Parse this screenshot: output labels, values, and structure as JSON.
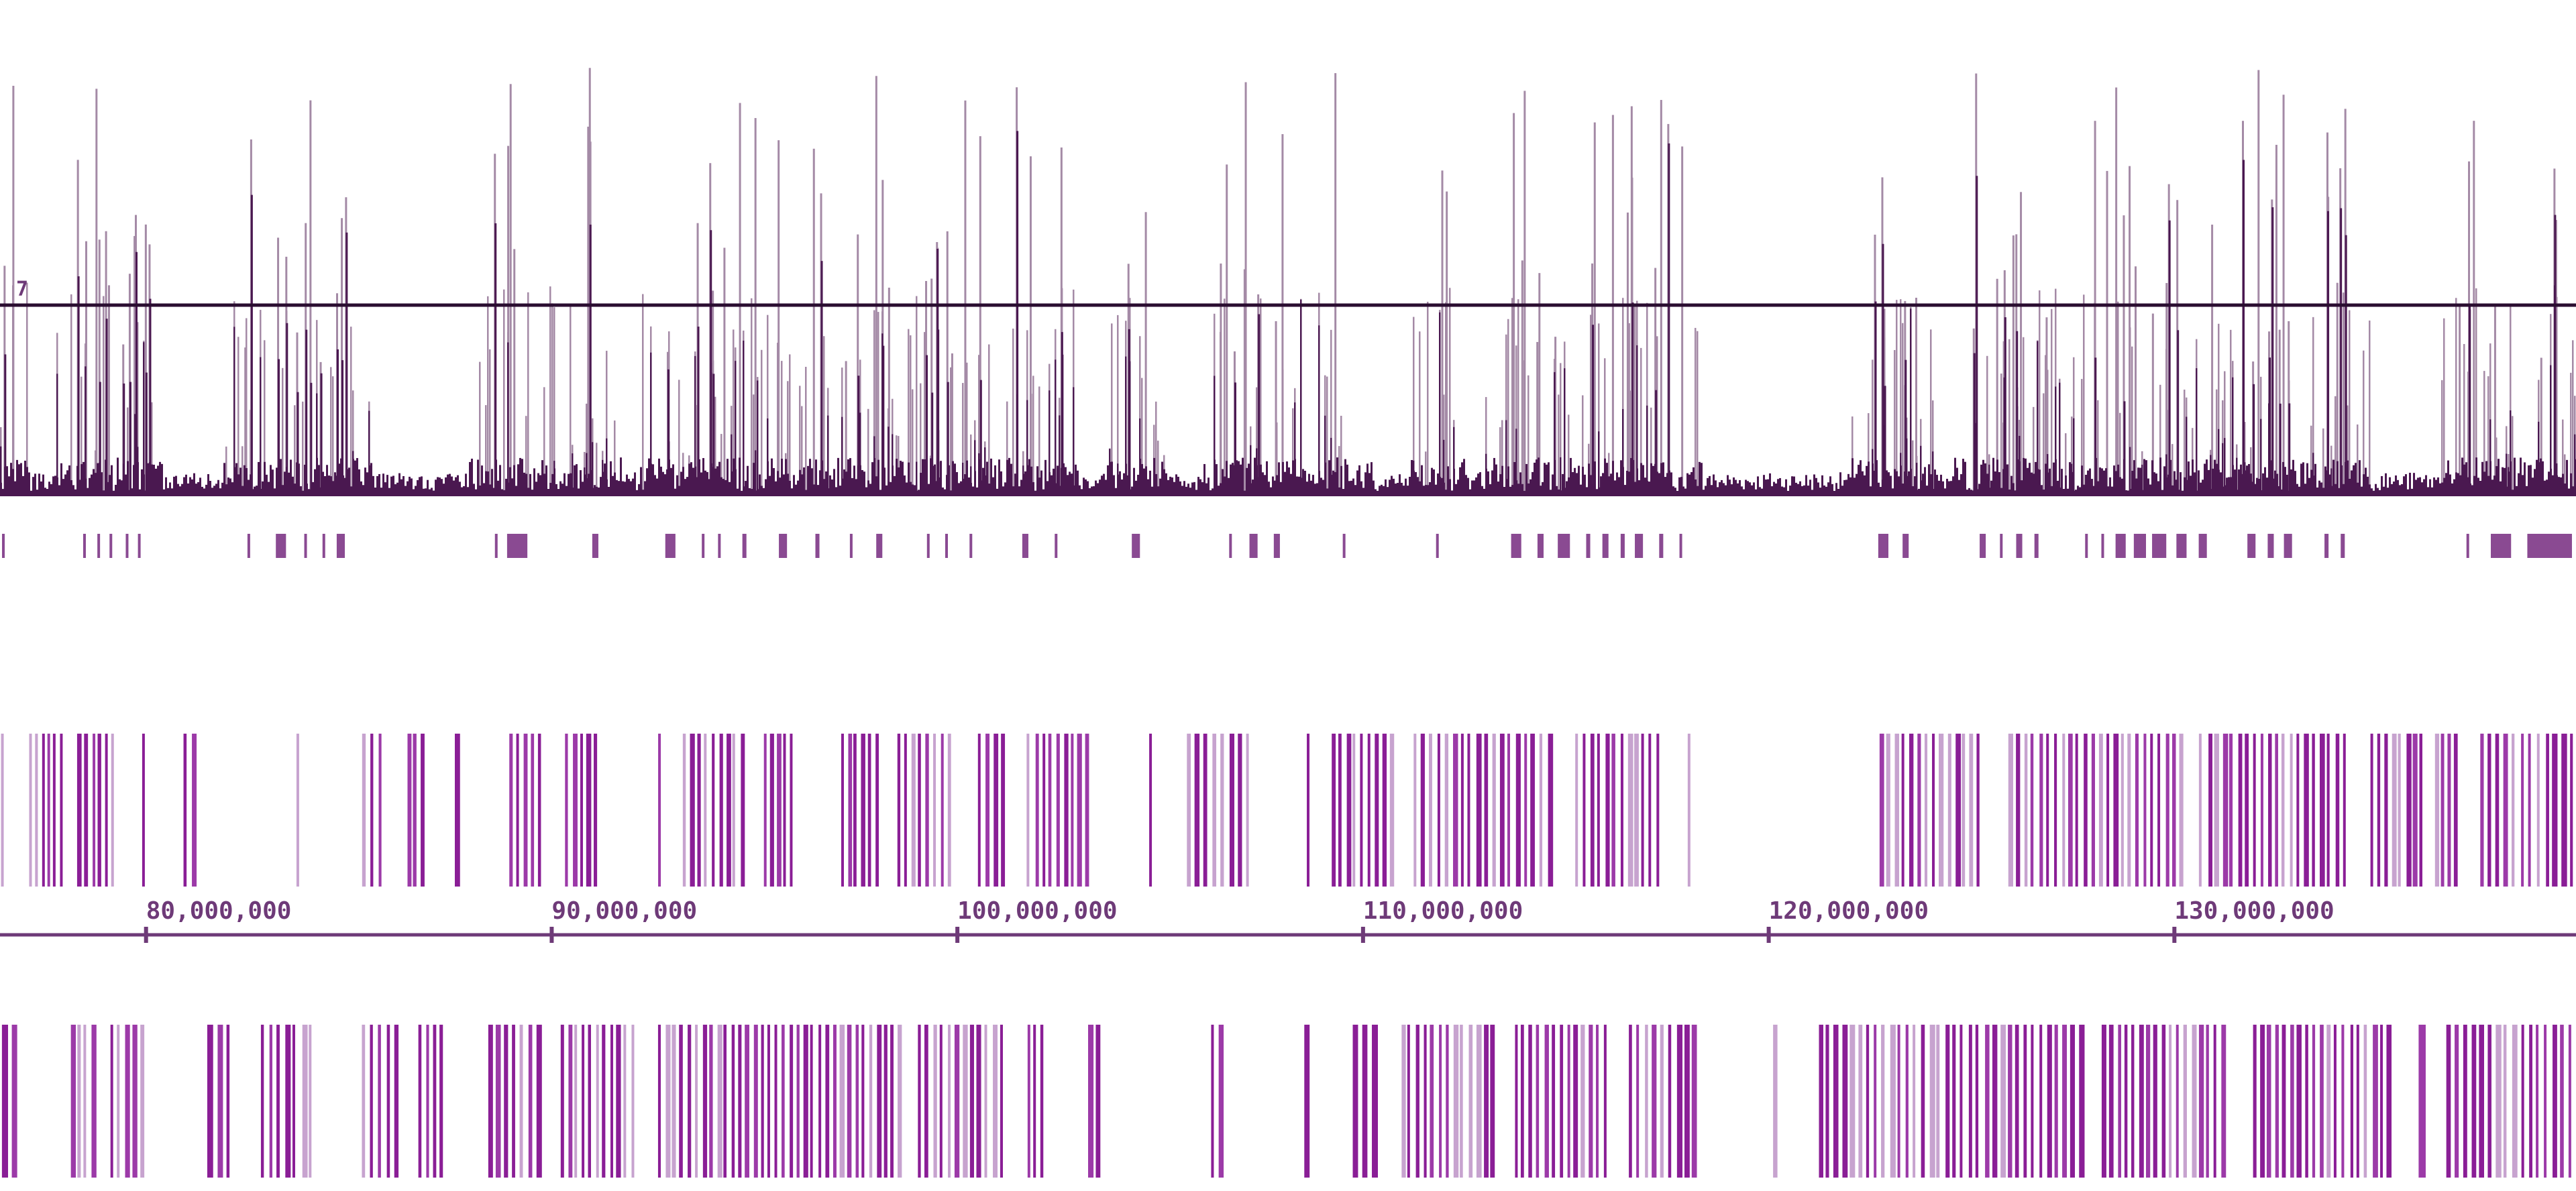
{
  "colors": {
    "signal_dark": "#4a1850",
    "signal_light": "#a48aa6",
    "peak_mark": "#8a4a92",
    "gene_dark": "#8a1e96",
    "gene_mid": "#9c3aa8",
    "gene_light": "#c7a3cf",
    "axis": "#6e3a78",
    "threshold": "#2a0d30"
  },
  "signal_track": {
    "scale_label": "7",
    "threshold_level": 0.14
  },
  "ruler": {
    "ticks": [
      {
        "label": "80,000,000",
        "value": 80000000
      },
      {
        "label": "90,000,000",
        "value": 90000000
      },
      {
        "label": "100,000,000",
        "value": 100000000
      },
      {
        "label": "110,000,000",
        "value": 110000000
      },
      {
        "label": "120,000,000",
        "value": 120000000
      },
      {
        "label": "130,000,000",
        "value": 130000000
      }
    ],
    "view_start": 76400000,
    "view_end": 139900000
  },
  "peaks": [
    {
      "start": 76450000,
      "end": 76480000
    },
    {
      "start": 78450000,
      "end": 78480000
    },
    {
      "start": 78800000,
      "end": 78830000
    },
    {
      "start": 79100000,
      "end": 79130000
    },
    {
      "start": 79500000,
      "end": 79530000
    },
    {
      "start": 79800000,
      "end": 79830000
    },
    {
      "start": 82500000,
      "end": 82530000
    },
    {
      "start": 83200000,
      "end": 83450000
    },
    {
      "start": 83900000,
      "end": 83930000
    },
    {
      "start": 84350000,
      "end": 84380000
    },
    {
      "start": 84700000,
      "end": 84900000
    },
    {
      "start": 88600000,
      "end": 88630000
    },
    {
      "start": 88900000,
      "end": 89400000
    },
    {
      "start": 91000000,
      "end": 91150000
    },
    {
      "start": 92800000,
      "end": 93050000
    },
    {
      "start": 93700000,
      "end": 93730000
    },
    {
      "start": 94100000,
      "end": 94130000
    },
    {
      "start": 94700000,
      "end": 94800000
    },
    {
      "start": 95600000,
      "end": 95800000
    },
    {
      "start": 96500000,
      "end": 96600000
    },
    {
      "start": 97350000,
      "end": 97380000
    },
    {
      "start": 98000000,
      "end": 98150000
    },
    {
      "start": 99250000,
      "end": 99280000
    },
    {
      "start": 99700000,
      "end": 99730000
    },
    {
      "start": 100300000,
      "end": 100330000
    },
    {
      "start": 101600000,
      "end": 101750000
    },
    {
      "start": 102400000,
      "end": 102430000
    },
    {
      "start": 104300000,
      "end": 104500000
    },
    {
      "start": 106700000,
      "end": 106730000
    },
    {
      "start": 107200000,
      "end": 107400000
    },
    {
      "start": 107800000,
      "end": 107950000
    },
    {
      "start": 109500000,
      "end": 109550000
    },
    {
      "start": 111800000,
      "end": 111830000
    },
    {
      "start": 113650000,
      "end": 113900000
    },
    {
      "start": 114300000,
      "end": 114450000
    },
    {
      "start": 114800000,
      "end": 115100000
    },
    {
      "start": 115500000,
      "end": 115600000
    },
    {
      "start": 115900000,
      "end": 116050000
    },
    {
      "start": 116350000,
      "end": 116450000
    },
    {
      "start": 116700000,
      "end": 116900000
    },
    {
      "start": 117300000,
      "end": 117400000
    },
    {
      "start": 117800000,
      "end": 117830000
    },
    {
      "start": 122700000,
      "end": 122950000
    },
    {
      "start": 123300000,
      "end": 123450000
    },
    {
      "start": 125200000,
      "end": 125350000
    },
    {
      "start": 125700000,
      "end": 125730000
    },
    {
      "start": 126100000,
      "end": 126250000
    },
    {
      "start": 126550000,
      "end": 126650000
    },
    {
      "start": 127800000,
      "end": 127830000
    },
    {
      "start": 128200000,
      "end": 128230000
    },
    {
      "start": 128550000,
      "end": 128800000
    },
    {
      "start": 129000000,
      "end": 129300000
    },
    {
      "start": 129450000,
      "end": 129800000
    },
    {
      "start": 130050000,
      "end": 130300000
    },
    {
      "start": 130600000,
      "end": 130800000
    },
    {
      "start": 131800000,
      "end": 132000000
    },
    {
      "start": 132300000,
      "end": 132450000
    },
    {
      "start": 132700000,
      "end": 132900000
    },
    {
      "start": 133700000,
      "end": 133800000
    },
    {
      "start": 134100000,
      "end": 134200000
    },
    {
      "start": 137200000,
      "end": 137230000
    },
    {
      "start": 137800000,
      "end": 138300000
    },
    {
      "start": 138700000,
      "end": 139800000
    }
  ],
  "gene_clusters_upper": [
    {
      "start": 76400000,
      "end": 76500000,
      "n": 1
    },
    {
      "start": 77100000,
      "end": 78000000,
      "n": 6
    },
    {
      "start": 78300000,
      "end": 79300000,
      "n": 6
    },
    {
      "start": 79900000,
      "end": 80000000,
      "n": 1
    },
    {
      "start": 80900000,
      "end": 81300000,
      "n": 2
    },
    {
      "start": 83700000,
      "end": 83800000,
      "n": 1
    },
    {
      "start": 85300000,
      "end": 85900000,
      "n": 3
    },
    {
      "start": 86400000,
      "end": 86900000,
      "n": 3
    },
    {
      "start": 87600000,
      "end": 87800000,
      "n": 1
    },
    {
      "start": 88950000,
      "end": 89800000,
      "n": 5
    },
    {
      "start": 90300000,
      "end": 91200000,
      "n": 5
    },
    {
      "start": 92600000,
      "end": 92700000,
      "n": 1
    },
    {
      "start": 93200000,
      "end": 94800000,
      "n": 9
    },
    {
      "start": 95200000,
      "end": 96000000,
      "n": 5
    },
    {
      "start": 97100000,
      "end": 98100000,
      "n": 6
    },
    {
      "start": 98500000,
      "end": 99900000,
      "n": 8
    },
    {
      "start": 100500000,
      "end": 101200000,
      "n": 4
    },
    {
      "start": 101700000,
      "end": 103300000,
      "n": 9
    },
    {
      "start": 104700000,
      "end": 104800000,
      "n": 1
    },
    {
      "start": 105600000,
      "end": 107300000,
      "n": 8
    },
    {
      "start": 108600000,
      "end": 108700000,
      "n": 1
    },
    {
      "start": 109200000,
      "end": 110800000,
      "n": 9
    },
    {
      "start": 111200000,
      "end": 114700000,
      "n": 18
    },
    {
      "start": 115200000,
      "end": 117400000,
      "n": 12
    },
    {
      "start": 118000000,
      "end": 118100000,
      "n": 1
    },
    {
      "start": 122700000,
      "end": 125300000,
      "n": 14
    },
    {
      "start": 125900000,
      "end": 130300000,
      "n": 24
    },
    {
      "start": 130600000,
      "end": 134300000,
      "n": 20
    },
    {
      "start": 134800000,
      "end": 136200000,
      "n": 8
    },
    {
      "start": 136400000,
      "end": 137000000,
      "n": 4
    },
    {
      "start": 137500000,
      "end": 139900000,
      "n": 12
    }
  ],
  "gene_clusters_lower": [
    {
      "start": 76400000,
      "end": 76900000,
      "n": 2
    },
    {
      "start": 78100000,
      "end": 78800000,
      "n": 4
    },
    {
      "start": 79100000,
      "end": 80000000,
      "n": 5
    },
    {
      "start": 81500000,
      "end": 82200000,
      "n": 3
    },
    {
      "start": 82800000,
      "end": 84200000,
      "n": 7
    },
    {
      "start": 85300000,
      "end": 86300000,
      "n": 5
    },
    {
      "start": 86700000,
      "end": 87400000,
      "n": 4
    },
    {
      "start": 88400000,
      "end": 89800000,
      "n": 7
    },
    {
      "start": 90200000,
      "end": 92100000,
      "n": 11
    },
    {
      "start": 92600000,
      "end": 98700000,
      "n": 34
    },
    {
      "start": 99000000,
      "end": 101200000,
      "n": 12
    },
    {
      "start": 101700000,
      "end": 102200000,
      "n": 3
    },
    {
      "start": 103200000,
      "end": 103600000,
      "n": 2
    },
    {
      "start": 106200000,
      "end": 106600000,
      "n": 2
    },
    {
      "start": 108500000,
      "end": 108700000,
      "n": 1
    },
    {
      "start": 109700000,
      "end": 110400000,
      "n": 3
    },
    {
      "start": 110900000,
      "end": 113300000,
      "n": 13
    },
    {
      "start": 113700000,
      "end": 116100000,
      "n": 13
    },
    {
      "start": 116500000,
      "end": 118300000,
      "n": 9
    },
    {
      "start": 120100000,
      "end": 120400000,
      "n": 1
    },
    {
      "start": 121200000,
      "end": 127800000,
      "n": 34
    },
    {
      "start": 128200000,
      "end": 131300000,
      "n": 17
    },
    {
      "start": 131900000,
      "end": 135400000,
      "n": 19
    },
    {
      "start": 136000000,
      "end": 136300000,
      "n": 1
    },
    {
      "start": 136700000,
      "end": 139900000,
      "n": 16
    }
  ]
}
